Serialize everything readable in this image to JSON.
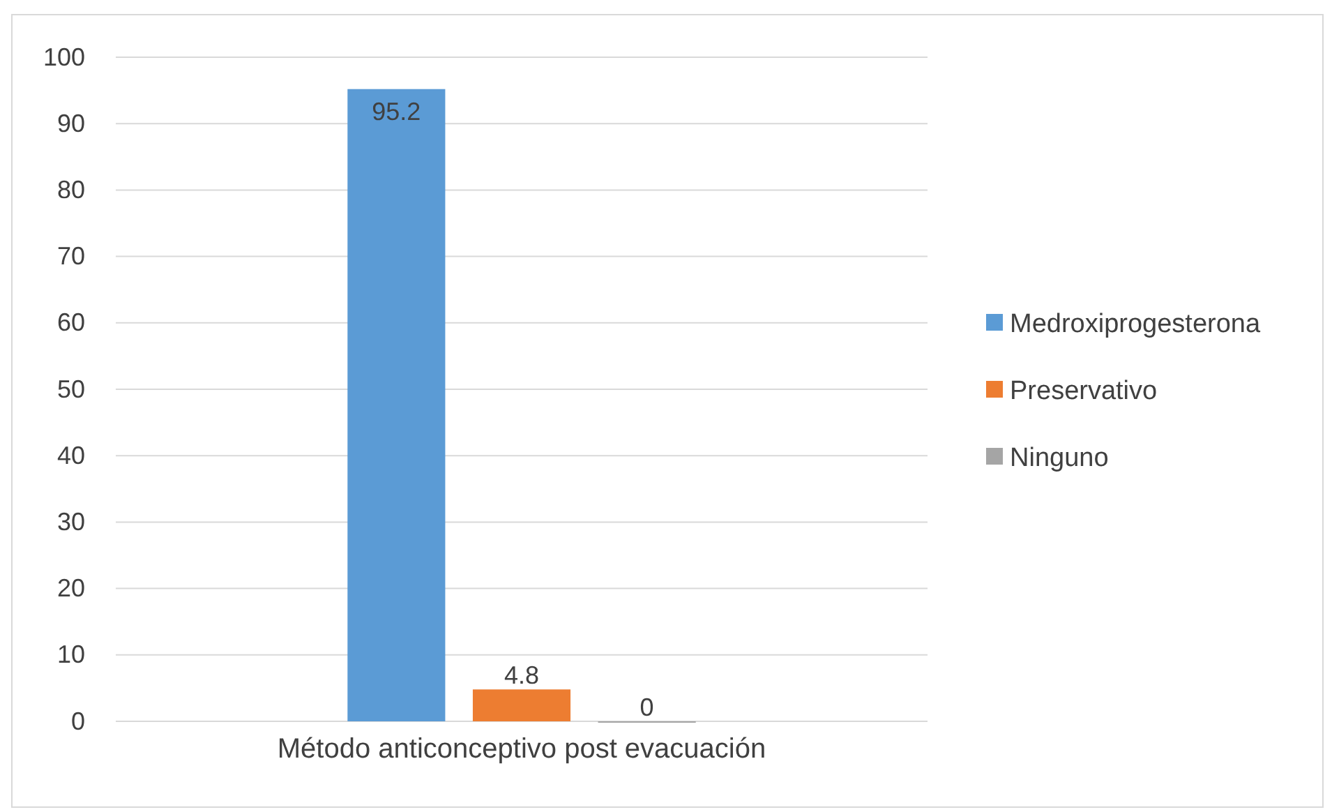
{
  "chart_data": {
    "type": "bar",
    "categories": [
      "Método anticonceptivo post evacuación"
    ],
    "series": [
      {
        "name": "Medroxiprogesterona",
        "color": "#5b9bd5",
        "values": [
          95.2
        ]
      },
      {
        "name": "Preservativo",
        "color": "#ed7d31",
        "values": [
          4.8
        ]
      },
      {
        "name": "Ninguno",
        "color": "#a5a5a5",
        "values": [
          0
        ]
      }
    ],
    "ylim": [
      0,
      100
    ],
    "yticks": [
      0,
      10,
      20,
      30,
      40,
      50,
      60,
      70,
      80,
      90,
      100
    ],
    "grid": "y",
    "legend": "right",
    "data_labels": true
  }
}
